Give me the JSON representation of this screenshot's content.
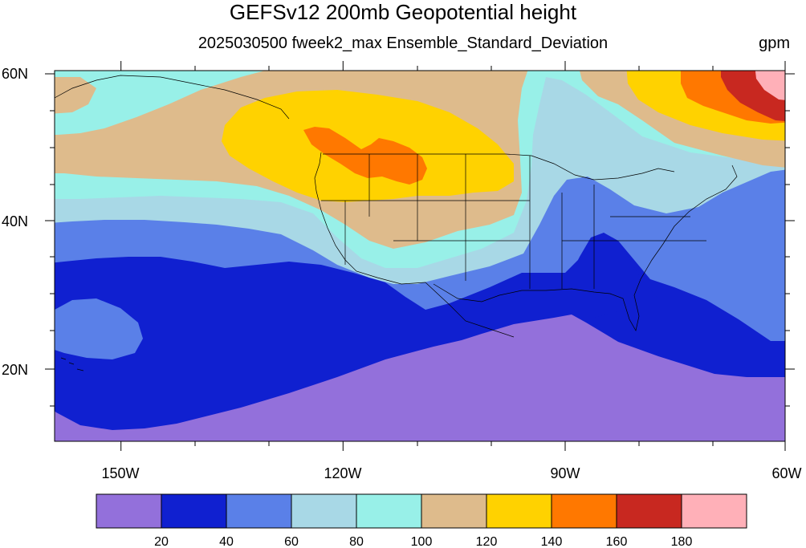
{
  "title": "GEFSv12 200mb Geopotential height",
  "subtitle": "2025030500 fweek2_max Ensemble_Standard_Deviation",
  "units": "gpm",
  "lat_labels": [
    "60N",
    "40N",
    "20N"
  ],
  "lon_labels": [
    "150W",
    "120W",
    "90W",
    "60W"
  ],
  "colorbar": {
    "colors": [
      "#9370DB",
      "#1020D0",
      "#5A80E8",
      "#A8D8E6",
      "#98F0E8",
      "#DEBB8C",
      "#FFD200",
      "#FF7800",
      "#C82820",
      "#FFB0B8"
    ],
    "labels": [
      "20",
      "40",
      "60",
      "80",
      "100",
      "120",
      "140",
      "160",
      "180"
    ]
  },
  "chart_data": {
    "type": "heatmap",
    "lat_range": [
      10,
      60
    ],
    "lon_range": [
      -160,
      -60
    ],
    "contour_levels": [
      20,
      40,
      60,
      80,
      100,
      120,
      140,
      160,
      180
    ],
    "lat_ticks": [
      60,
      40,
      20
    ],
    "lon_ticks": [
      -150,
      -120,
      -90,
      -60
    ]
  }
}
